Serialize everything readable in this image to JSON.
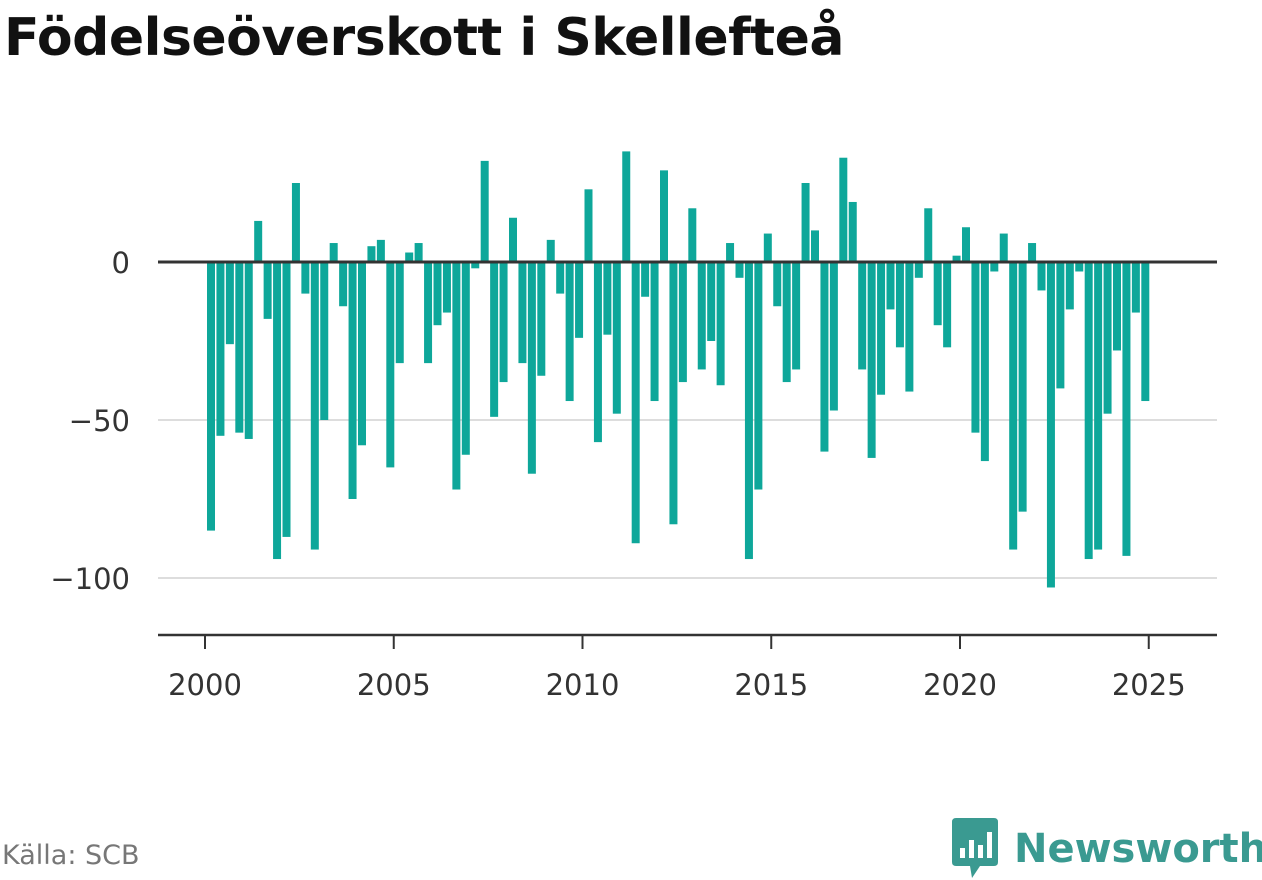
{
  "title": "Födelseöverskott i Skellefteå",
  "source": "Källa: SCB",
  "brand": "Newsworthy",
  "colors": {
    "bar": "#0ea79a",
    "brand": "#3a9a91",
    "grid": "#dddddd",
    "axis": "#333333"
  },
  "chart_data": {
    "type": "bar",
    "title": "Födelseöverskott i Skellefteå",
    "ylim": [
      -118,
      40
    ],
    "yticks": [
      0,
      -50,
      -100
    ],
    "ytick_labels": [
      "0",
      "−50",
      "−100"
    ],
    "xticks": [
      2000,
      2005,
      2010,
      2015,
      2020,
      2025
    ],
    "xtick_labels": [
      "2000",
      "2005",
      "2010",
      "2015",
      "2020",
      "2025"
    ],
    "x_start": 2000,
    "x_step": 0.25,
    "values": [
      -85,
      -55,
      -26,
      -54,
      -56,
      13,
      -18,
      -94,
      -87,
      25,
      -10,
      -91,
      -50,
      6,
      -14,
      -75,
      -58,
      5,
      7,
      -65,
      -32,
      3,
      6,
      -32,
      -20,
      -16,
      -72,
      -61,
      -2,
      32,
      -49,
      -38,
      14,
      -32,
      -67,
      -36,
      7,
      -10,
      -44,
      -24,
      23,
      -57,
      -23,
      -48,
      35,
      -89,
      -11,
      -44,
      29,
      -83,
      -38,
      17,
      -34,
      -25,
      -39,
      6,
      -5,
      -94,
      -72,
      9,
      -14,
      -38,
      -34,
      25,
      10,
      -60,
      -47,
      33,
      19,
      -34,
      -62,
      -42,
      -15,
      -27,
      -41,
      -5,
      17,
      -20,
      -27,
      2,
      11,
      -54,
      -63,
      -3,
      9,
      -91,
      -79,
      6,
      -9,
      -103,
      -40,
      -15,
      -3,
      -94,
      -91,
      -48,
      -28,
      -93,
      -16,
      -44
    ]
  }
}
